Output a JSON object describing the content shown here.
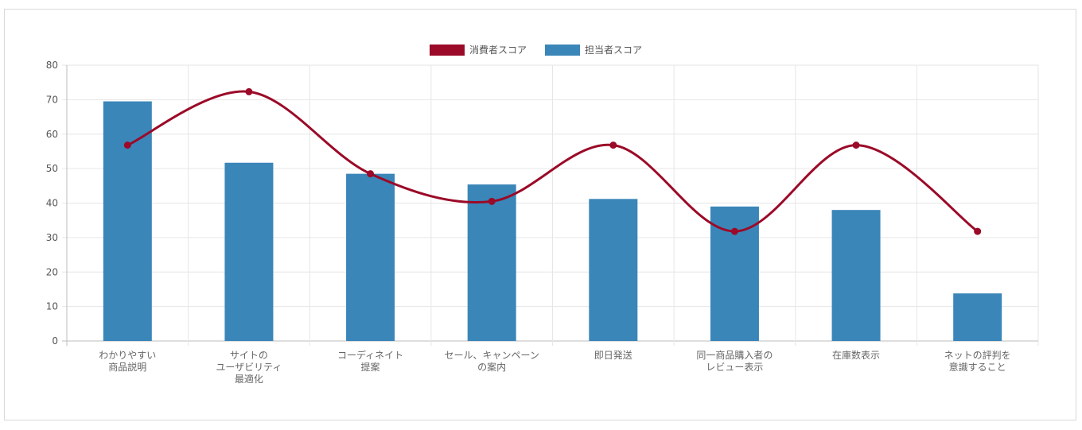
{
  "chart_data": {
    "type": "bar",
    "title": "",
    "xlabel": "",
    "ylabel": "",
    "ylim": [
      0,
      80
    ],
    "yticks": [
      0,
      10,
      20,
      30,
      40,
      50,
      60,
      70,
      80
    ],
    "grid": true,
    "legend_position": "top-center",
    "categories": [
      [
        "わかりやすい",
        "商品説明"
      ],
      [
        "サイトの",
        "ユーザビリティ",
        "最適化"
      ],
      [
        "コーディネイト",
        "提案"
      ],
      [
        "セール、キャンペーン",
        "の案内"
      ],
      [
        "即日発送"
      ],
      [
        "同一商品購入者の",
        "レビュー表示"
      ],
      [
        "在庫数表示"
      ],
      [
        "ネットの評判を",
        "意識すること"
      ]
    ],
    "series": [
      {
        "name": "消費者スコア",
        "type": "line",
        "smooth": true,
        "color": "#9b0a28",
        "values": [
          56.8,
          72.3,
          48.5,
          40.5,
          56.8,
          31.8,
          56.8,
          31.8
        ]
      },
      {
        "name": "担当者スコア",
        "type": "bar",
        "color": "#3a86b9",
        "values": [
          69.5,
          51.7,
          48.5,
          45.4,
          41.2,
          39.0,
          38.0,
          13.8
        ]
      }
    ]
  }
}
